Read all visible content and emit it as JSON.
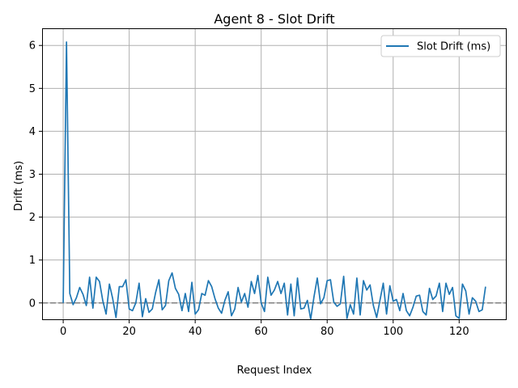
{
  "chart_data": {
    "type": "line",
    "title": "Agent 8 - Slot Drift",
    "xlabel": "Request Index",
    "ylabel": "Drift (ms)",
    "xlim": [
      -6.4,
      134.4
    ],
    "ylim": [
      -0.4,
      6.4
    ],
    "xticks": [
      0,
      20,
      40,
      60,
      80,
      100,
      120
    ],
    "yticks": [
      0,
      1,
      2,
      3,
      4,
      5,
      6
    ],
    "grid": true,
    "legend_position": "top-right",
    "reference_line": {
      "y": 0,
      "style": "dashed",
      "color": "#808080"
    },
    "series": [
      {
        "name": "Slot Drift (ms)",
        "color": "#1f77b4",
        "x": [
          0,
          1,
          2,
          3,
          4,
          5,
          6,
          7,
          8,
          9,
          10,
          11,
          12,
          13,
          14,
          15,
          16,
          17,
          18,
          19,
          20,
          21,
          22,
          23,
          24,
          25,
          26,
          27,
          28,
          29,
          30,
          31,
          32,
          33,
          34,
          35,
          36,
          37,
          38,
          39,
          40,
          41,
          42,
          43,
          44,
          45,
          46,
          47,
          48,
          49,
          50,
          51,
          52,
          53,
          54,
          55,
          56,
          57,
          58,
          59,
          60,
          61,
          62,
          63,
          64,
          65,
          66,
          67,
          68,
          69,
          70,
          71,
          72,
          73,
          74,
          75,
          76,
          77,
          78,
          79,
          80,
          81,
          82,
          83,
          84,
          85,
          86,
          87,
          88,
          89,
          90,
          91,
          92,
          93,
          94,
          95,
          96,
          97,
          98,
          99,
          100,
          101,
          102,
          103,
          104,
          105,
          106,
          107,
          108,
          109,
          110,
          111,
          112,
          113,
          114,
          115,
          116,
          117,
          118,
          119,
          120,
          121,
          122,
          123,
          124,
          125,
          126,
          127,
          128
        ],
        "y": [
          0.0,
          6.08,
          0.22,
          -0.04,
          0.12,
          0.36,
          0.2,
          -0.06,
          0.6,
          -0.12,
          0.6,
          0.5,
          0.05,
          -0.26,
          0.44,
          0.1,
          -0.34,
          0.38,
          0.38,
          0.54,
          -0.14,
          -0.18,
          0.0,
          0.46,
          -0.32,
          0.1,
          -0.22,
          -0.14,
          0.24,
          0.54,
          -0.16,
          -0.06,
          0.52,
          0.7,
          0.34,
          0.2,
          -0.18,
          0.22,
          -0.2,
          0.48,
          -0.26,
          -0.16,
          0.22,
          0.18,
          0.52,
          0.38,
          0.1,
          -0.12,
          -0.24,
          0.06,
          0.26,
          -0.3,
          -0.14,
          0.36,
          0.02,
          0.22,
          -0.1,
          0.5,
          0.22,
          0.64,
          0.0,
          -0.2,
          0.6,
          0.18,
          0.3,
          0.5,
          0.22,
          0.46,
          -0.28,
          0.44,
          -0.3,
          0.58,
          -0.14,
          -0.12,
          0.06,
          -0.38,
          0.14,
          0.58,
          -0.02,
          0.12,
          0.52,
          0.54,
          0.02,
          -0.08,
          -0.02,
          0.62,
          -0.36,
          -0.04,
          -0.26,
          0.58,
          -0.28,
          0.52,
          0.3,
          0.42,
          -0.06,
          -0.34,
          0.06,
          0.46,
          -0.26,
          0.4,
          0.04,
          0.08,
          -0.18,
          0.22,
          -0.18,
          -0.3,
          -0.1,
          0.16,
          0.18,
          -0.2,
          -0.28,
          0.34,
          0.08,
          0.16,
          0.46,
          -0.2,
          0.46,
          0.2,
          0.36,
          -0.3,
          -0.36,
          0.44,
          0.28,
          -0.26,
          0.12,
          0.04,
          -0.2,
          -0.16,
          0.38
        ]
      }
    ]
  }
}
